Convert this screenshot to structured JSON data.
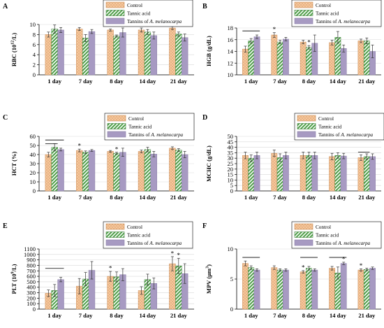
{
  "series_names": [
    "Control",
    "Tannic acid",
    "Tannins of A. melanocarpa"
  ],
  "series_colors": {
    "control": "#f4bd8a",
    "tannic": "#5daa55",
    "melano": "#a79ac2"
  },
  "chart_data": [
    {
      "panel": "A",
      "type": "bar",
      "ylabel_main": "RBC (10",
      "ylabel_sup": "12",
      "ylabel_end": "/L)",
      "categories": [
        "1 day",
        "7 day",
        "8 day",
        "14 day",
        "21 day"
      ],
      "ylim": [
        0,
        10
      ],
      "yticks": [
        0,
        2,
        4,
        6,
        8,
        10
      ],
      "ytick_labels": [
        "0",
        "2",
        "4",
        "6",
        "8",
        "10"
      ],
      "series": [
        {
          "name": "Control",
          "values": [
            8.0,
            9.1,
            8.9,
            8.9,
            9.3
          ],
          "errors": [
            0.5,
            0.3,
            0.2,
            0.4,
            0.3
          ]
        },
        {
          "name": "Tannic acid",
          "values": [
            9.1,
            7.3,
            7.7,
            8.5,
            8.1
          ],
          "errors": [
            0.8,
            0.7,
            0.2,
            0.5,
            0.4
          ]
        },
        {
          "name": "Tannins of A. melanocarpa",
          "values": [
            8.9,
            8.6,
            8.4,
            7.8,
            7.4
          ],
          "errors": [
            0.5,
            0.4,
            0.9,
            0.7,
            0.7
          ]
        }
      ],
      "stars": [
        {
          "cat": 4,
          "series": 0
        }
      ],
      "sig_lines": [
        {
          "cat": 2,
          "from": 0,
          "to": 1,
          "y": 9.9
        }
      ]
    },
    {
      "panel": "B",
      "type": "bar",
      "ylabel_main": "HGB (g/dL)",
      "categories": [
        "1 day",
        "7 day",
        "8 day",
        "14 day",
        "21 day"
      ],
      "ylim": [
        10,
        18
      ],
      "yticks": [
        10,
        12,
        14,
        16,
        18
      ],
      "ytick_labels": [
        "10",
        "12",
        "14",
        "16",
        "18"
      ],
      "series": [
        {
          "name": "Control",
          "values": [
            14.4,
            16.8,
            15.6,
            15.5,
            15.8
          ],
          "errors": [
            0.5,
            0.4,
            0.3,
            0.4,
            0.3
          ]
        },
        {
          "name": "Tannic acid",
          "values": [
            15.8,
            15.6,
            14.7,
            16.4,
            15.8
          ],
          "errors": [
            0.4,
            0.3,
            0.3,
            1.0,
            0.5
          ]
        },
        {
          "name": "Tannins of A. melanocarpa",
          "values": [
            16.5,
            16.1,
            15.4,
            14.5,
            14.0
          ],
          "errors": [
            0.3,
            0.3,
            1.4,
            0.6,
            1.1
          ]
        }
      ],
      "stars": [
        {
          "cat": 1,
          "series": 0
        },
        {
          "cat": 2,
          "series": 1
        }
      ],
      "sig_lines": [
        {
          "cat": 0,
          "from": 0,
          "to": 2,
          "y": 17.5
        }
      ]
    },
    {
      "panel": "C",
      "type": "bar",
      "ylabel_main": "HCT (%)",
      "categories": [
        "1 day",
        "7 day",
        "8 day",
        "14 day",
        "21 day"
      ],
      "ylim": [
        0,
        60
      ],
      "yticks": [
        0,
        10,
        20,
        30,
        40,
        50,
        60
      ],
      "ytick_labels": [
        "0",
        "10",
        "20",
        "30",
        "40",
        "50",
        "60"
      ],
      "series": [
        {
          "name": "Control",
          "values": [
            40.0,
            44.5,
            43.5,
            43.5,
            47.0
          ],
          "errors": [
            2.5,
            1.5,
            1.0,
            1.5,
            1.5
          ]
        },
        {
          "name": "Tannic acid",
          "values": [
            48.0,
            42.5,
            41.5,
            45.5,
            45.0
          ],
          "errors": [
            4.0,
            1.5,
            1.0,
            2.5,
            1.5
          ]
        },
        {
          "name": "Tannins of A. melanocarpa",
          "values": [
            45.5,
            44.5,
            42.5,
            40.5,
            40.0
          ],
          "errors": [
            1.5,
            1.0,
            4.5,
            3.0,
            3.5
          ]
        }
      ],
      "stars": [
        {
          "cat": 1,
          "series": 0
        },
        {
          "cat": 2,
          "series": 1
        }
      ],
      "sig_lines": [
        {
          "cat": 0,
          "from": 0,
          "to": 2,
          "y": 56
        },
        {
          "cat": 0,
          "from": 0,
          "to": 1,
          "y": 52
        }
      ]
    },
    {
      "panel": "D",
      "type": "bar",
      "ylabel_main": "MCHC (g/dL)",
      "categories": [
        "1 day",
        "7 day",
        "8 day",
        "14 day",
        "21 day"
      ],
      "ylim": [
        0,
        50
      ],
      "yticks": [
        0,
        5,
        10,
        15,
        20,
        25,
        30,
        35,
        40,
        45,
        50
      ],
      "ytick_labels": [
        "0",
        "5",
        "10",
        "15",
        "20",
        "25",
        "30",
        "35",
        "40",
        "45",
        "50"
      ],
      "series": [
        {
          "name": "Control",
          "values": [
            32.5,
            34.5,
            32.5,
            31.5,
            30.5
          ],
          "errors": [
            3.0,
            3.0,
            3.0,
            3.0,
            2.5
          ]
        },
        {
          "name": "Tannic acid",
          "values": [
            30.0,
            30.5,
            32.5,
            32.5,
            31.5
          ],
          "errors": [
            3.0,
            3.5,
            3.0,
            2.5,
            2.5
          ]
        },
        {
          "name": "Tannins of A. melanocarpa",
          "values": [
            32.5,
            32.5,
            32.5,
            32.0,
            31.5
          ],
          "errors": [
            3.0,
            3.0,
            3.0,
            2.5,
            2.5
          ]
        }
      ],
      "stars": [],
      "sig_lines": [
        {
          "cat": 4,
          "from": 0,
          "to": 1,
          "y": 35.5
        }
      ]
    },
    {
      "panel": "E",
      "type": "bar",
      "ylabel_main": "PLT (10",
      "ylabel_sup": "9",
      "ylabel_end": "/L)",
      "categories": [
        "1 day",
        "7 day",
        "8 day",
        "14 day",
        "21 day"
      ],
      "ylim": [
        0,
        1100
      ],
      "yticks": [
        0,
        100,
        200,
        300,
        400,
        500,
        600,
        700,
        800,
        900,
        1000,
        1100
      ],
      "ytick_labels": [
        "0",
        "100",
        "200",
        "300",
        "400",
        "500",
        "600",
        "700",
        "800",
        "900",
        "1000",
        "1100"
      ],
      "series": [
        {
          "name": "Control",
          "values": [
            290,
            420,
            600,
            340,
            830
          ],
          "errors": [
            60,
            140,
            90,
            70,
            130
          ]
        },
        {
          "name": "Tannic acid",
          "values": [
            340,
            550,
            590,
            540,
            790
          ],
          "errors": [
            110,
            120,
            90,
            100,
            140
          ]
        },
        {
          "name": "Tannins of A. melanocarpa",
          "values": [
            540,
            710,
            630,
            470,
            650
          ],
          "errors": [
            40,
            160,
            110,
            100,
            180
          ]
        }
      ],
      "stars": [
        {
          "cat": 2,
          "series": 0
        },
        {
          "cat": 4,
          "series": 0
        },
        {
          "cat": 4,
          "series": 1
        }
      ],
      "sig_lines": [
        {
          "cat": 0,
          "from": 0,
          "to": 2,
          "y": 745
        }
      ]
    },
    {
      "panel": "F",
      "type": "bar",
      "ylabel_main": "MPV (μm",
      "ylabel_sup": "3",
      "ylabel_end": ")",
      "categories": [
        "1 day",
        "7 day",
        "8 day",
        "14 day",
        "21 day"
      ],
      "ylim": [
        0,
        10
      ],
      "yticks": [
        0,
        5,
        10
      ],
      "ytick_labels": [
        "0",
        "5",
        "10"
      ],
      "series": [
        {
          "name": "Control",
          "values": [
            7.6,
            6.9,
            6.2,
            6.8,
            6.5
          ],
          "errors": [
            0.4,
            0.3,
            0.2,
            0.3,
            0.2
          ]
        },
        {
          "name": "Tannic acid",
          "values": [
            6.9,
            6.5,
            6.8,
            6.0,
            6.6
          ],
          "errors": [
            0.3,
            0.2,
            0.3,
            1.0,
            0.2
          ]
        },
        {
          "name": "Tannins of A. melanocarpa",
          "values": [
            6.5,
            6.5,
            6.5,
            7.6,
            6.8
          ],
          "errors": [
            0.2,
            0.2,
            0.2,
            0.2,
            0.2
          ]
        }
      ],
      "stars": [
        {
          "cat": 2,
          "series": 0
        },
        {
          "cat": 3,
          "series": 2
        },
        {
          "cat": 4,
          "series": 0
        }
      ],
      "sig_lines": [
        {
          "cat": 0,
          "from": 0,
          "to": 2,
          "y": 8.6
        },
        {
          "cat": 2,
          "from": 0,
          "to": 2,
          "y": 8.6
        },
        {
          "cat": 3,
          "from": 0,
          "to": 2,
          "y": 8.6
        }
      ]
    }
  ]
}
